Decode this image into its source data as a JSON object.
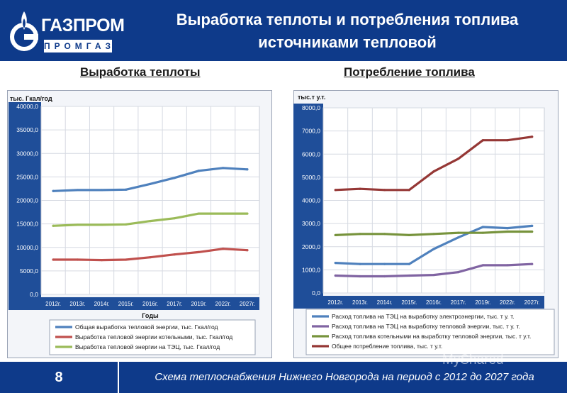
{
  "header": {
    "logo_name": "ГАЗПРОМ",
    "logo_sub": "ПРОМГАЗ",
    "title_line1": "Выработка теплоты и потребления топлива",
    "title_line2": "источниками тепловой"
  },
  "sections": {
    "left_title": "Выработка теплоты",
    "right_title": "Потребление топлива"
  },
  "footer": {
    "page_number": "8",
    "text": "Схема теплоснабжения Нижнего Новгорода на период с 2012 до 2027 года",
    "watermark": "MyShared"
  },
  "chart_data": [
    {
      "type": "line",
      "unit_label": "тыс. Гкал/год",
      "xlabel": "Годы",
      "categories": [
        "2012г.",
        "2013г.",
        "2014г.",
        "2015г.",
        "2016г.",
        "2017г.",
        "2019г.",
        "2022г.",
        "2027г."
      ],
      "ylim": [
        0,
        40000
      ],
      "yticks": [
        "0,0",
        "5000,0",
        "10000,0",
        "15000,0",
        "20000,0",
        "25000,0",
        "30000,0",
        "35000,0",
        "40000,0"
      ],
      "grid": true,
      "legend_position": "bottom",
      "series": [
        {
          "name": "Общая выработка тепловой энергии, тыс. Гкал/год",
          "color": "#4f81bd",
          "values": [
            22000,
            22200,
            22200,
            22300,
            23500,
            24800,
            26300,
            26900,
            26600
          ]
        },
        {
          "name": "Выработка тепловой энергии котельными, тыс. Гкал/год",
          "color": "#c0504d",
          "values": [
            7400,
            7400,
            7300,
            7400,
            7900,
            8500,
            9000,
            9700,
            9400
          ]
        },
        {
          "name": "Выработка тепловой энергии на ТЭЦ, тыс. Гкал/год",
          "color": "#9bbb59",
          "values": [
            14600,
            14800,
            14800,
            14900,
            15600,
            16200,
            17200,
            17200,
            17200
          ]
        }
      ]
    },
    {
      "type": "line",
      "unit_label": "тыс.т у.т.",
      "categories": [
        "2012г.",
        "2013г.",
        "2014г.",
        "2015г.",
        "2016г.",
        "2017г.",
        "2019г.",
        "2022г.",
        "2027г."
      ],
      "ylim": [
        0,
        8000
      ],
      "yticks": [
        "0,0",
        "1000,0",
        "2000,0",
        "3000,0",
        "4000,0",
        "5000,0",
        "6000,0",
        "7000,0",
        "8000,0"
      ],
      "grid": true,
      "legend_position": "bottom",
      "series": [
        {
          "name": "Расход топлива на ТЭЦ на выработку электроэнергии, тыс. т у. т.",
          "color": "#4f81bd",
          "values": [
            1300,
            1250,
            1250,
            1250,
            1900,
            2400,
            2850,
            2800,
            2900
          ]
        },
        {
          "name": "Расход топлива на ТЭЦ на выработку тепловой энергии, тыс. т у. т.",
          "color": "#8064a2",
          "values": [
            750,
            720,
            720,
            750,
            780,
            900,
            1200,
            1200,
            1250
          ]
        },
        {
          "name": "Расход топлива котельными на выработку тепловой энергии, тыс. т у.т.",
          "color": "#77933c",
          "values": [
            2500,
            2550,
            2550,
            2500,
            2550,
            2600,
            2600,
            2650,
            2650
          ]
        },
        {
          "name": "Общее потребление топлива, тыс. т у.т.",
          "color": "#953735",
          "values": [
            4450,
            4500,
            4450,
            4450,
            5250,
            5800,
            6600,
            6600,
            6750
          ]
        }
      ]
    }
  ]
}
